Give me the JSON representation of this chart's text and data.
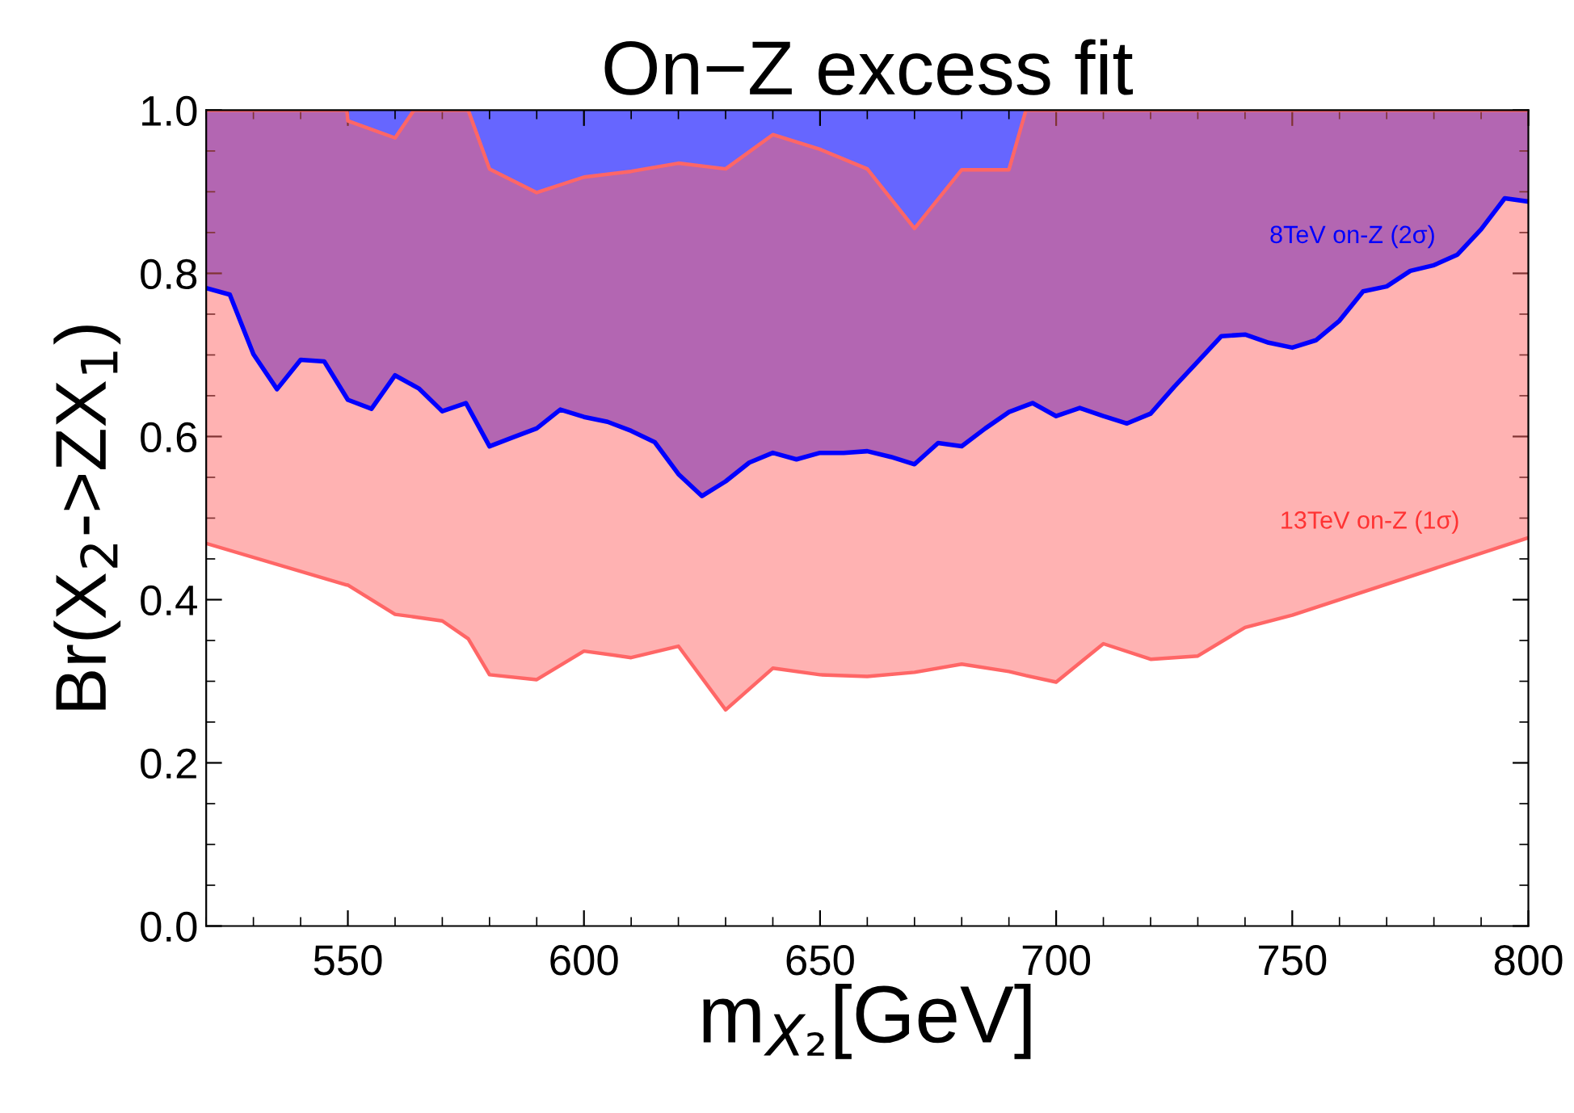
{
  "chart_data": {
    "type": "line",
    "title": "On−Z excess fit",
    "xlabel": "m$_{X₂}$[GeV]",
    "ylabel": "Br(X$_{2}$->ZX$_{1}$)",
    "xlim": [
      520,
      800
    ],
    "xticks": [
      550,
      600,
      650,
      700,
      750,
      800
    ],
    "ylim": [
      0,
      1
    ],
    "yticks": [
      {
        "value": 0,
        "label": "0.0"
      },
      0.2,
      0.4,
      0.6,
      0.8,
      {
        "value": 1,
        "label": "1.0"
      }
    ],
    "grid": false,
    "legend": false,
    "marker": "none",
    "line_style": "solid",
    "series": [
      {
        "name": "8TeV on-Z (2σ)",
        "color": "#0000ff",
        "x": [
          520,
          525,
          530,
          535,
          540,
          545,
          550,
          555,
          560,
          565,
          570,
          575,
          580,
          585,
          590,
          595,
          600,
          605,
          610,
          615,
          620,
          625,
          630,
          635,
          640,
          645,
          650,
          655,
          660,
          665,
          670,
          675,
          680,
          685,
          690,
          695,
          700,
          705,
          710,
          715,
          720,
          725,
          730,
          735,
          740,
          745,
          750,
          755,
          760,
          765,
          770,
          775,
          780,
          785,
          790,
          795,
          800
        ],
        "values": [
          0.782,
          0.774,
          0.701,
          0.658,
          0.694,
          0.692,
          0.645,
          0.634,
          0.675,
          0.659,
          0.631,
          0.641,
          0.588,
          0.599,
          0.61,
          0.633,
          0.624,
          0.618,
          0.607,
          0.593,
          0.554,
          0.527,
          0.545,
          0.568,
          0.58,
          0.572,
          0.58,
          0.58,
          0.582,
          0.575,
          0.566,
          0.592,
          0.588,
          0.61,
          0.63,
          0.641,
          0.625,
          0.635,
          0.625,
          0.616,
          0.628,
          0.661,
          0.692,
          0.723,
          0.725,
          0.715,
          0.709,
          0.718,
          0.742,
          0.778,
          0.784,
          0.803,
          0.81,
          0.823,
          0.854,
          0.892,
          0.888
        ],
        "lower": [
          0.782,
          0.774,
          0.701,
          0.658,
          0.694,
          0.692,
          0.645,
          0.634,
          0.675,
          0.659,
          0.631,
          0.641,
          0.588,
          0.599,
          0.61,
          0.633,
          0.624,
          0.618,
          0.607,
          0.593,
          0.554,
          0.527,
          0.545,
          0.568,
          0.58,
          0.572,
          0.58,
          0.58,
          0.582,
          0.575,
          0.566,
          0.592,
          0.588,
          0.61,
          0.63,
          0.641,
          0.625,
          0.635,
          0.625,
          0.616,
          0.628,
          0.661,
          0.692,
          0.723,
          0.725,
          0.715,
          0.709,
          0.718,
          0.742,
          0.778,
          0.784,
          0.803,
          0.81,
          0.823,
          0.854,
          0.892,
          0.888
        ],
        "upper": [
          1,
          1,
          1,
          1,
          1,
          1,
          1,
          1,
          1,
          1,
          1,
          1,
          1,
          1,
          1,
          1,
          1,
          1,
          1,
          1,
          1,
          1,
          1,
          1,
          1,
          1,
          1,
          1,
          1,
          1,
          1,
          1,
          1,
          1,
          1,
          1,
          1,
          1,
          1,
          1,
          1,
          1,
          1,
          1,
          1,
          1,
          1,
          1,
          1,
          1,
          1,
          1,
          1,
          1,
          1,
          1,
          1
        ]
      },
      {
        "name": "13TeV on-Z (1σ)",
        "color": "#ff6666",
        "x": [
          520,
          549.8,
          550,
          560,
          564,
          570,
          575.5,
          580,
          590,
          600,
          610,
          620,
          630,
          640,
          650,
          660,
          670,
          680,
          690,
          693.6,
          700,
          710,
          720,
          730,
          740,
          750,
          800
        ],
        "values": [
          0.469,
          0.418,
          0.418,
          0.382,
          0.379,
          0.374,
          0.352,
          0.308,
          0.302,
          0.337,
          0.329,
          0.343,
          0.265,
          0.316,
          0.308,
          0.306,
          0.311,
          0.321,
          0.312,
          0.307,
          0.299,
          0.346,
          0.327,
          0.331,
          0.366,
          0.381,
          0.476
        ],
        "lower": [
          0.469,
          0.418,
          0.418,
          0.382,
          0.379,
          0.374,
          0.352,
          0.308,
          0.302,
          0.337,
          0.329,
          0.343,
          0.265,
          0.316,
          0.308,
          0.306,
          0.311,
          0.321,
          0.312,
          0.307,
          0.299,
          0.346,
          0.327,
          0.331,
          0.366,
          0.381,
          0.476
        ],
        "upper": [
          1,
          1,
          0.987,
          0.966,
          1,
          1,
          1,
          0.928,
          0.899,
          0.918,
          0.925,
          0.935,
          0.928,
          0.97,
          0.952,
          0.928,
          0.855,
          0.927,
          0.927,
          1,
          1,
          1,
          1,
          1,
          1,
          1,
          1
        ]
      },
      {
        "color": "#ff6666",
        "x": [
          520,
          549.8,
          550,
          560,
          564,
          570,
          575.5,
          580,
          590,
          600,
          610,
          620,
          630,
          640,
          650,
          660,
          670,
          680,
          690,
          693.6,
          700,
          710,
          720,
          730,
          740,
          750,
          800
        ],
        "values": [
          1,
          1,
          0.987,
          0.966,
          1,
          1,
          1,
          0.928,
          0.899,
          0.918,
          0.925,
          0.935,
          0.928,
          0.97,
          0.952,
          0.928,
          0.855,
          0.927,
          0.927,
          1,
          1,
          1,
          1,
          1,
          1,
          1,
          1
        ]
      }
    ]
  }
}
